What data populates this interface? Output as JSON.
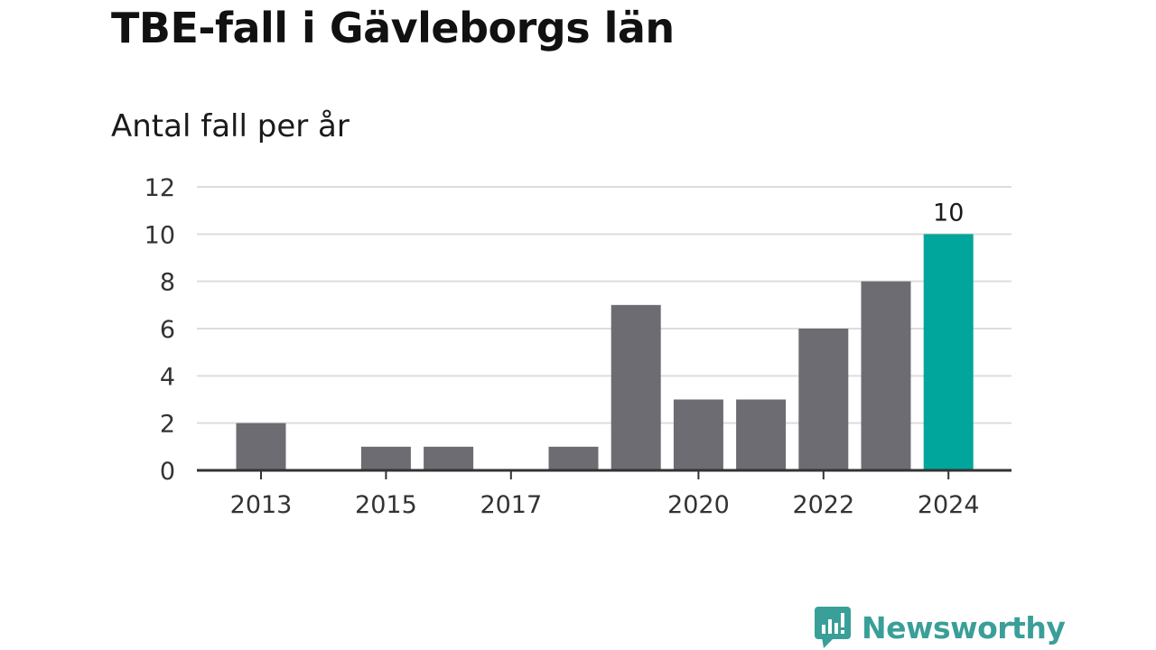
{
  "header": {
    "title": "TBE-fall i Gävleborgs län",
    "subtitle": "Antal fall per år"
  },
  "chart_data": {
    "type": "bar",
    "title": "TBE-fall i Gävleborgs län",
    "subtitle": "Antal fall per år",
    "xlabel": "",
    "ylabel": "",
    "categories": [
      "2013",
      "2014",
      "2015",
      "2016",
      "2017",
      "2018",
      "2019",
      "2020",
      "2021",
      "2022",
      "2023",
      "2024"
    ],
    "values": [
      2,
      0,
      1,
      1,
      0,
      1,
      7,
      3,
      3,
      6,
      8,
      10
    ],
    "x_tick_labels": [
      "2013",
      "2015",
      "2017",
      "2020",
      "2022",
      "2024"
    ],
    "y_ticks": [
      0,
      2,
      4,
      6,
      8,
      10,
      12
    ],
    "ylim": [
      0,
      12
    ],
    "grid": true,
    "bar_color": "#6d6c72",
    "highlight_color": "#00a59b",
    "highlight_index": 11,
    "data_labels": [
      {
        "index": 11,
        "text": "10"
      }
    ]
  },
  "brand": {
    "name": "Newsworthy",
    "icon": "newsworthy-logo-icon",
    "color": "#3a9f98"
  }
}
